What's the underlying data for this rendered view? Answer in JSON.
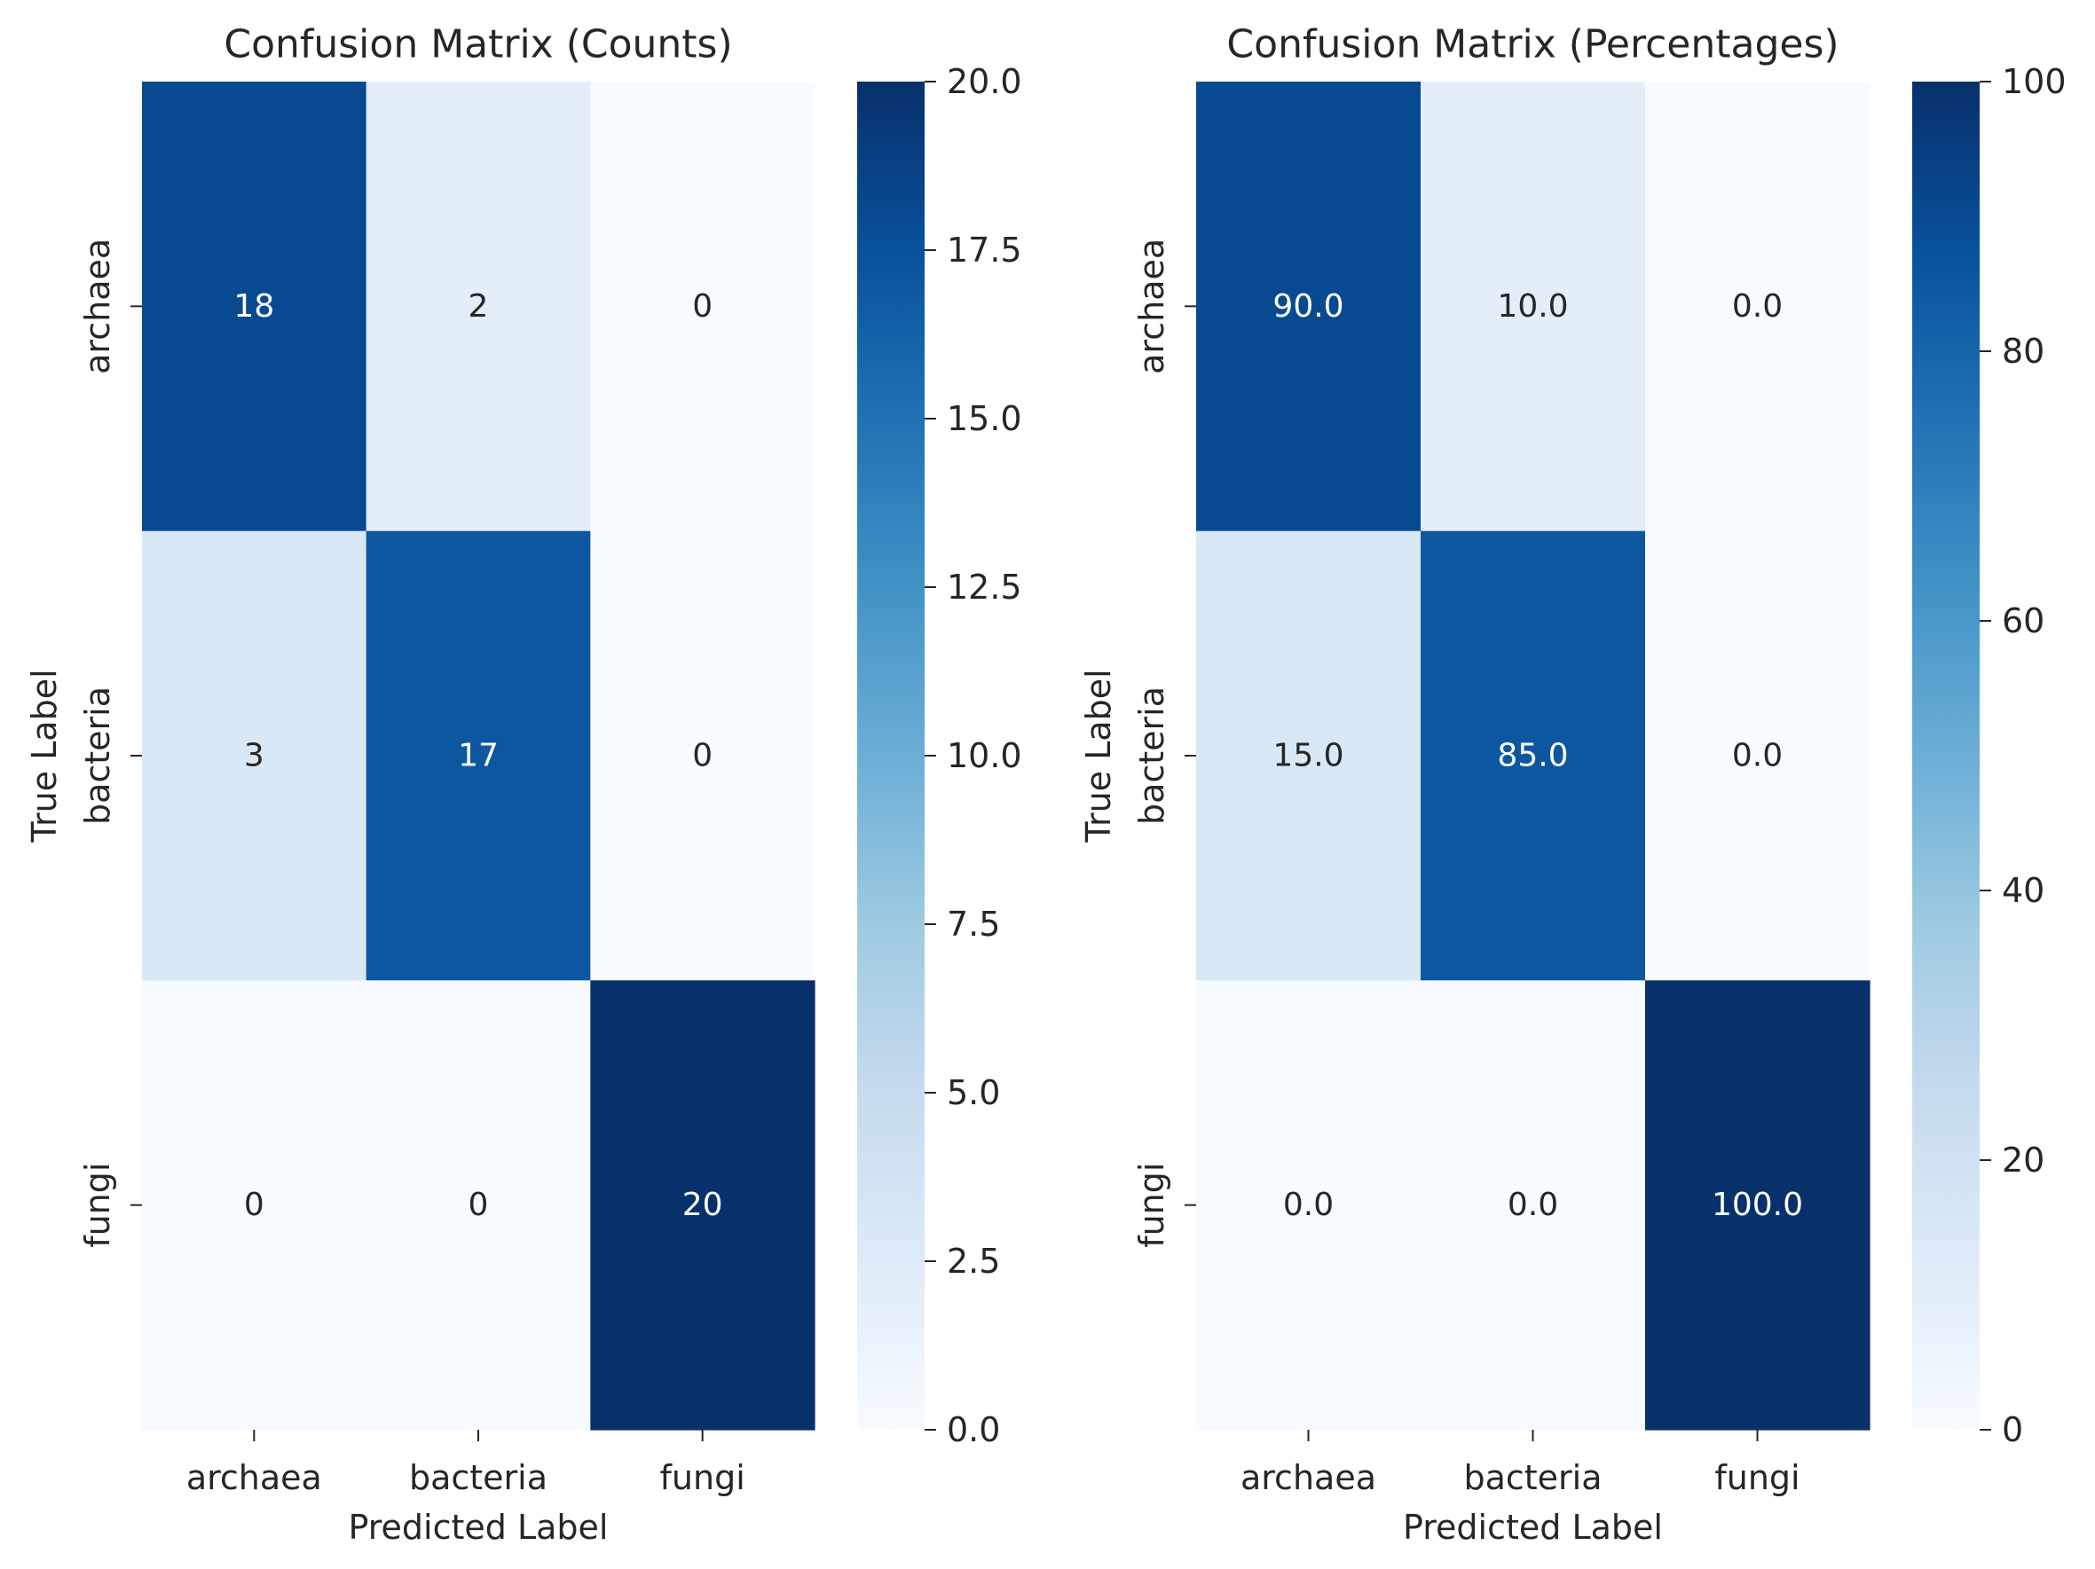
{
  "chart_data": [
    {
      "type": "heatmap",
      "title": "Confusion Matrix (Counts)",
      "xlabel": "Predicted Label",
      "ylabel": "True Label",
      "x_categories": [
        "archaea",
        "bacteria",
        "fungi"
      ],
      "y_categories": [
        "archaea",
        "bacteria",
        "fungi"
      ],
      "values": [
        [
          18,
          2,
          0
        ],
        [
          3,
          17,
          0
        ],
        [
          0,
          0,
          20
        ]
      ],
      "cell_labels": [
        [
          "18",
          "2",
          "0"
        ],
        [
          "3",
          "17",
          "0"
        ],
        [
          "0",
          "0",
          "20"
        ]
      ],
      "colorbar": {
        "range": [
          0,
          20
        ],
        "ticks": [
          0,
          2.5,
          5,
          7.5,
          10,
          12.5,
          15,
          17.5,
          20
        ],
        "tick_labels": [
          "0.0",
          "2.5",
          "5.0",
          "7.5",
          "10.0",
          "12.5",
          "15.0",
          "17.5",
          "20.0"
        ]
      },
      "colormap": "Blues"
    },
    {
      "type": "heatmap",
      "title": "Confusion Matrix (Percentages)",
      "xlabel": "Predicted Label",
      "ylabel": "True Label",
      "x_categories": [
        "archaea",
        "bacteria",
        "fungi"
      ],
      "y_categories": [
        "archaea",
        "bacteria",
        "fungi"
      ],
      "values": [
        [
          90.0,
          10.0,
          0.0
        ],
        [
          15.0,
          85.0,
          0.0
        ],
        [
          0.0,
          0.0,
          100.0
        ]
      ],
      "cell_labels": [
        [
          "90.0",
          "10.0",
          "0.0"
        ],
        [
          "15.0",
          "85.0",
          "0.0"
        ],
        [
          "0.0",
          "0.0",
          "100.0"
        ]
      ],
      "colorbar": {
        "range": [
          0,
          100
        ],
        "ticks": [
          0,
          20,
          40,
          60,
          80,
          100
        ],
        "tick_labels": [
          "0",
          "20",
          "40",
          "60",
          "80",
          "100"
        ]
      },
      "colormap": "Blues"
    }
  ]
}
